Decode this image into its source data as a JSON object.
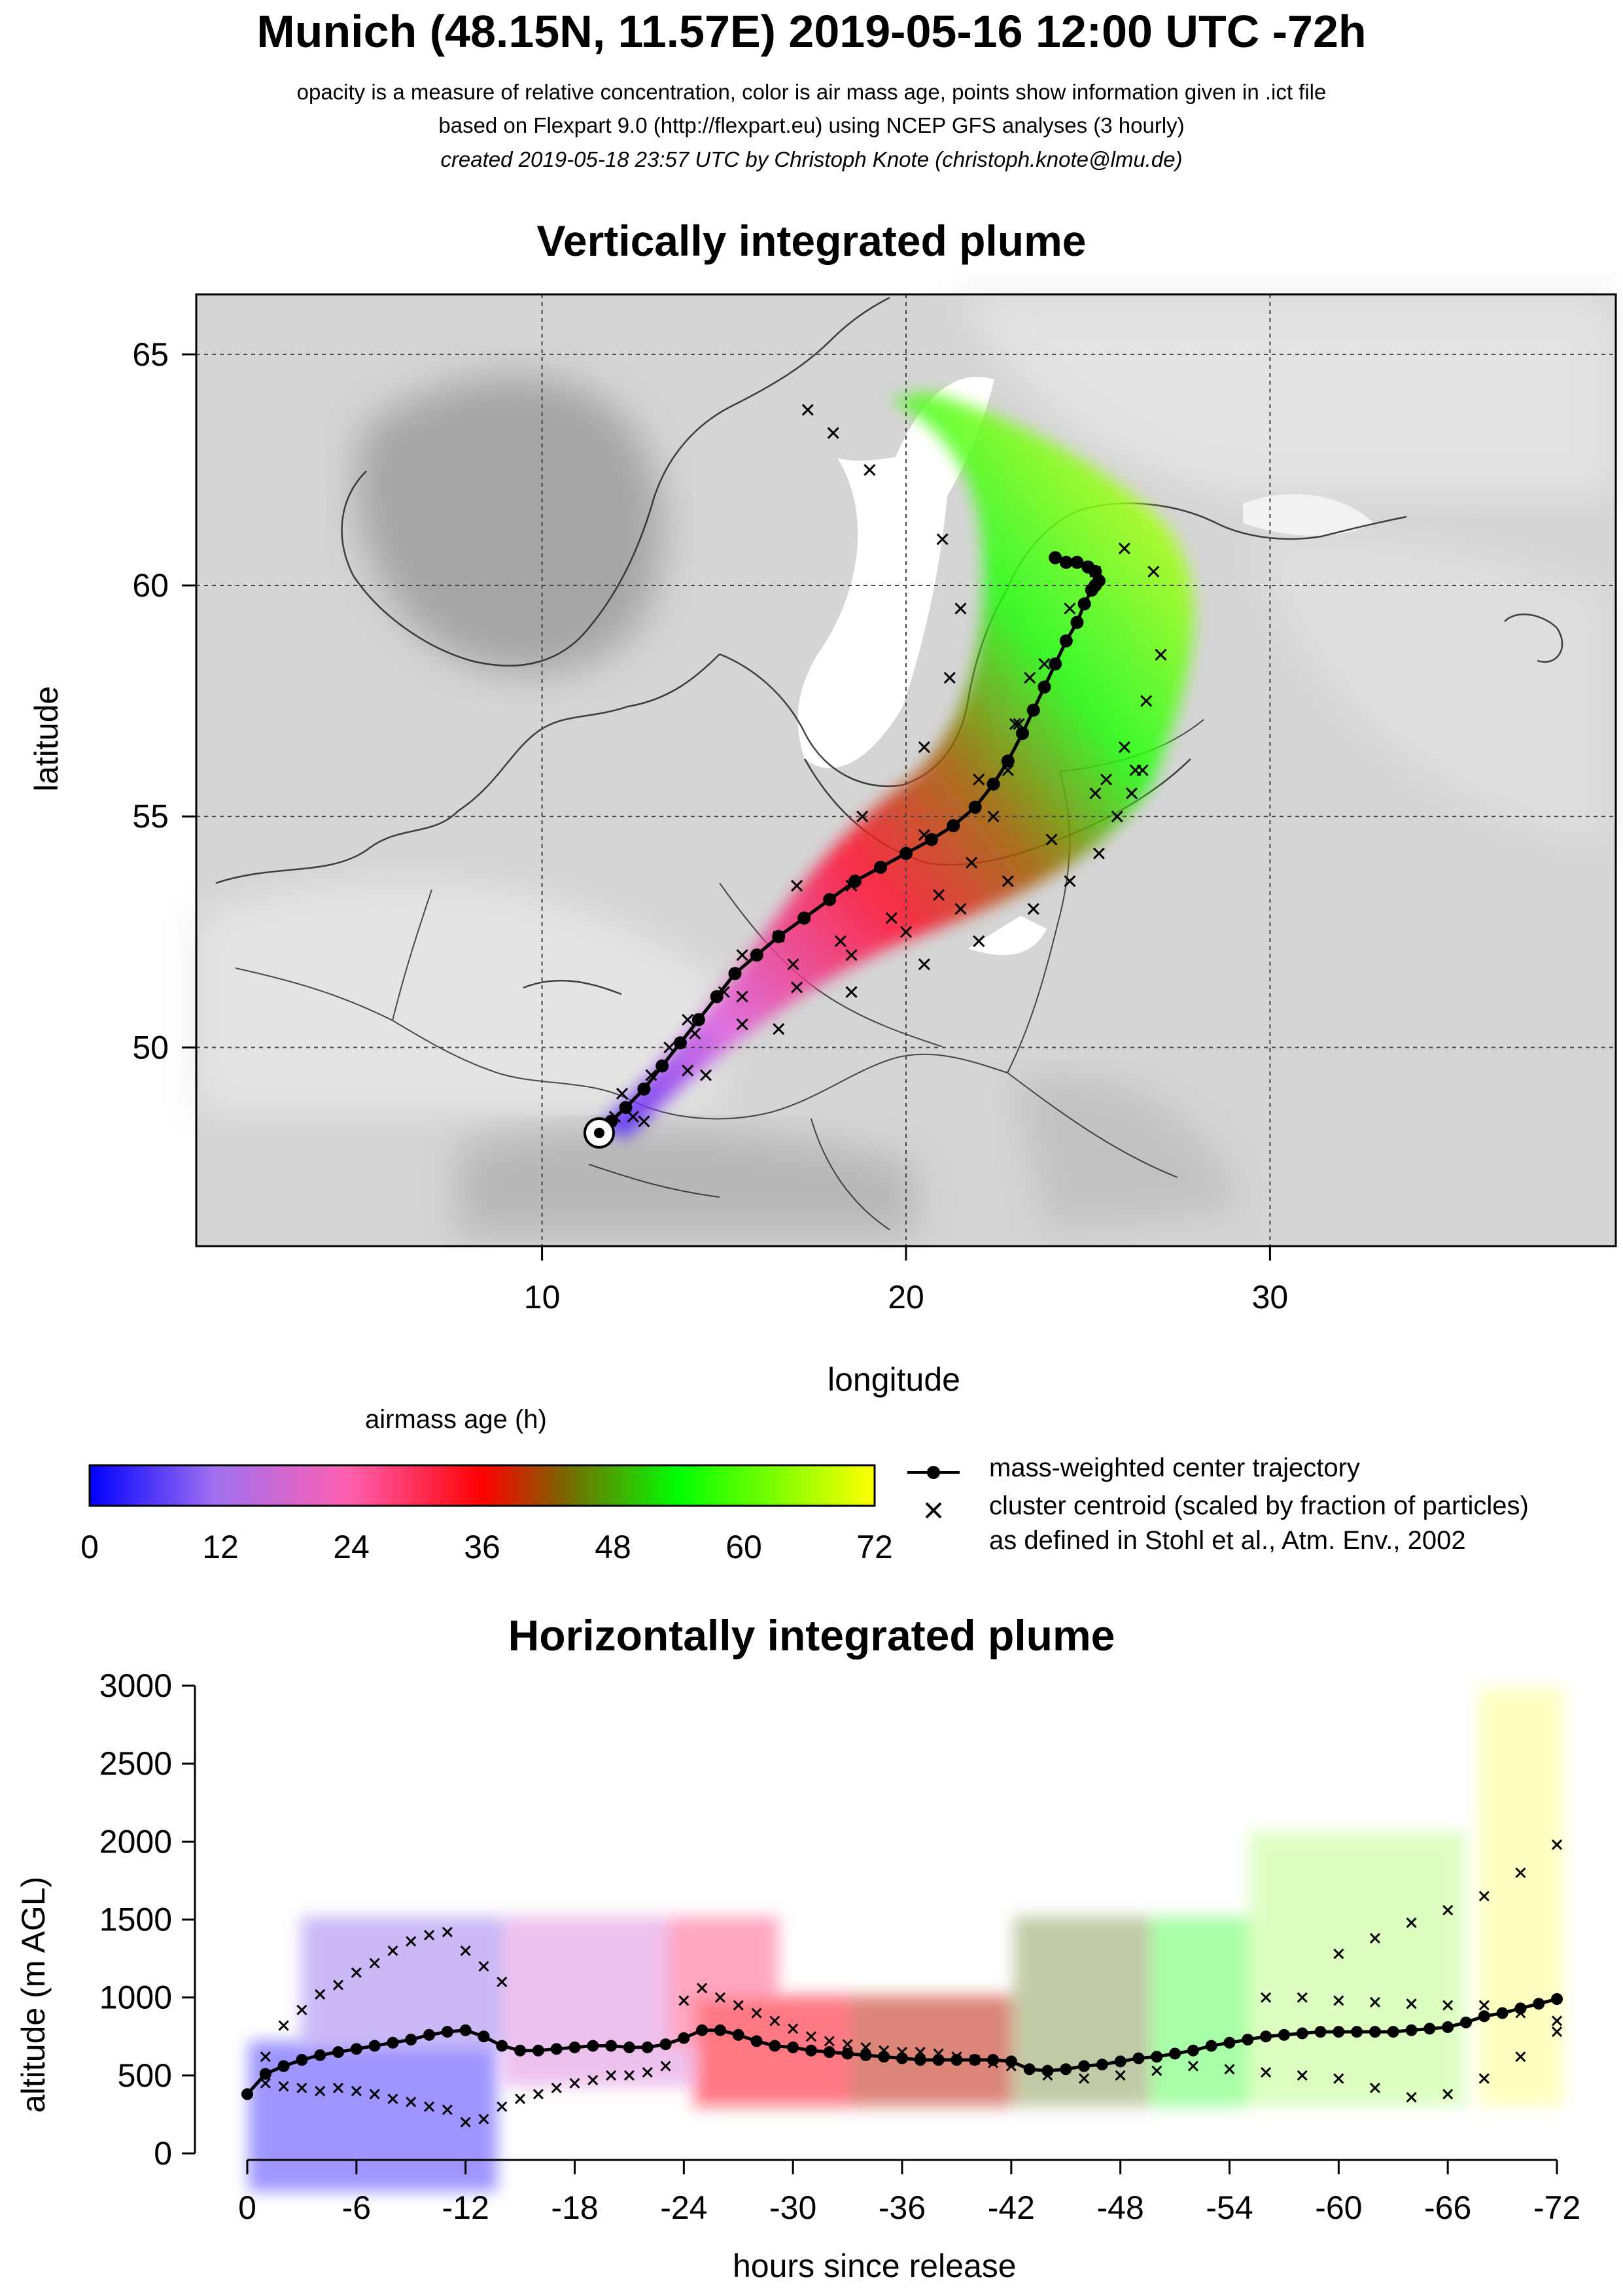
{
  "header": {
    "title": "Munich (48.15N, 11.57E) 2019-05-16 12:00 UTC -72h",
    "line1": "opacity is a measure of relative concentration, color is air mass age, points show information given in .ict file",
    "line2": "based on Flexpart 9.0 (http://flexpart.eu) using NCEP GFS analyses (3 hourly)",
    "line3": "created 2019-05-18 23:57 UTC by Christoph Knote (christoph.knote@lmu.de)"
  },
  "colors": {
    "background_map": "#d3d3d3",
    "water": "#ffffff",
    "age_ramp": [
      "#0000ff",
      "#d060e0",
      "#ff3080",
      "#ff0000",
      "#806000",
      "#00ff00",
      "#ffff00"
    ]
  },
  "chart_data": [
    {
      "type": "scatter",
      "title": "Vertically integrated plume",
      "xlabel": "longitude",
      "ylabel": "latitude",
      "xlim": [
        0.5,
        39.5
      ],
      "ylim": [
        45.7,
        66.3
      ],
      "xticks": [
        "10",
        "20",
        "30"
      ],
      "xtick_values": [
        10,
        20,
        30
      ],
      "yticks": [
        "50",
        "55",
        "60",
        "65"
      ],
      "ytick_values": [
        50,
        55,
        60,
        65
      ],
      "grid": true,
      "release_point": {
        "lon": 11.57,
        "lat": 48.15
      },
      "series": [
        {
          "name": "mass-weighted center trajectory",
          "lon": [
            11.6,
            11.9,
            12.3,
            12.8,
            13.3,
            13.8,
            14.3,
            14.8,
            15.3,
            15.9,
            16.5,
            17.2,
            17.9,
            18.6,
            19.3,
            20.0,
            20.7,
            21.3,
            21.9,
            22.4,
            22.8,
            23.2,
            23.5,
            23.8,
            24.1,
            24.4,
            24.7,
            24.9,
            25.1,
            25.2,
            25.3,
            25.2,
            25.0,
            24.7,
            24.4,
            24.1
          ],
          "lat": [
            48.15,
            48.4,
            48.7,
            49.1,
            49.6,
            50.1,
            50.6,
            51.1,
            51.6,
            52.0,
            52.4,
            52.8,
            53.2,
            53.6,
            53.9,
            54.2,
            54.5,
            54.8,
            55.2,
            55.7,
            56.2,
            56.8,
            57.3,
            57.8,
            58.3,
            58.8,
            59.2,
            59.6,
            59.9,
            60.0,
            60.1,
            60.3,
            60.4,
            60.5,
            60.5,
            60.6
          ]
        },
        {
          "name": "cluster centroid (scaled by fraction of particles)",
          "lon": [
            12.0,
            13.0,
            14.2,
            15.5,
            16.9,
            18.2,
            19.6,
            20.9,
            21.8,
            22.4,
            22.8,
            23.1,
            23.4,
            12.5,
            14.0,
            15.5,
            17.0,
            18.5,
            20.0,
            21.5,
            22.8,
            24.0,
            25.2,
            26.0,
            26.6,
            27.0,
            12.8,
            14.5,
            16.5,
            18.5,
            20.5,
            22.0,
            23.5,
            24.5,
            25.3,
            25.8,
            26.2,
            26.5,
            26.3,
            25.5,
            12.2,
            13.5,
            15.0,
            16.5,
            18.5,
            20.5,
            22.0,
            23.0,
            23.8,
            24.5,
            25.2,
            26.0,
            26.8,
            14.0,
            15.5,
            17.0,
            18.8,
            20.5,
            21.2,
            21.5,
            21.0,
            19.0,
            18.0,
            17.3
          ],
          "lat": [
            48.5,
            49.4,
            50.3,
            51.1,
            51.8,
            52.3,
            52.8,
            53.3,
            54.0,
            55.0,
            56.0,
            57.0,
            58.0,
            48.5,
            49.5,
            50.5,
            51.3,
            52.0,
            52.5,
            53.0,
            53.6,
            54.5,
            55.5,
            56.5,
            57.5,
            58.5,
            48.4,
            49.4,
            50.4,
            51.2,
            51.8,
            52.3,
            53.0,
            53.6,
            54.2,
            55.0,
            55.5,
            56.0,
            56.0,
            55.8,
            49.0,
            50.0,
            51.2,
            52.4,
            53.5,
            54.6,
            55.8,
            57.0,
            58.3,
            59.5,
            60.3,
            60.8,
            60.3,
            50.6,
            52.0,
            53.5,
            55.0,
            56.5,
            58.0,
            59.5,
            61.0,
            62.5,
            63.3,
            63.8
          ]
        }
      ]
    },
    {
      "type": "scatter",
      "title": "Horizontally integrated plume",
      "xlabel": "hours since release",
      "ylabel": "altitude (m AGL)",
      "xlim": [
        0,
        -72
      ],
      "ylim": [
        0,
        3000
      ],
      "xticks": [
        "0",
        "-6",
        "-12",
        "-18",
        "-24",
        "-30",
        "-36",
        "-42",
        "-48",
        "-54",
        "-60",
        "-66",
        "-72"
      ],
      "xtick_values": [
        0,
        -6,
        -12,
        -18,
        -24,
        -30,
        -36,
        -42,
        -48,
        -54,
        -60,
        -66,
        -72
      ],
      "yticks": [
        "0",
        "500",
        "1000",
        "1500",
        "2000",
        "2500",
        "3000"
      ],
      "ytick_values": [
        0,
        500,
        1000,
        1500,
        2000,
        2500,
        3000
      ],
      "grid": false,
      "series": [
        {
          "name": "mass-weighted center trajectory",
          "x": [
            0,
            -1,
            -2,
            -3,
            -4,
            -5,
            -6,
            -7,
            -8,
            -9,
            -10,
            -11,
            -12,
            -13,
            -14,
            -15,
            -16,
            -17,
            -18,
            -19,
            -20,
            -21,
            -22,
            -23,
            -24,
            -25,
            -26,
            -27,
            -28,
            -29,
            -30,
            -31,
            -32,
            -33,
            -34,
            -35,
            -36,
            -37,
            -38,
            -39,
            -40,
            -41,
            -42,
            -43,
            -44,
            -45,
            -46,
            -47,
            -48,
            -49,
            -50,
            -51,
            -52,
            -53,
            -54,
            -55,
            -56,
            -57,
            -58,
            -59,
            -60,
            -61,
            -62,
            -63,
            -64,
            -65,
            -66,
            -67,
            -68,
            -69,
            -70,
            -71,
            -72
          ],
          "y": [
            380,
            510,
            560,
            600,
            630,
            650,
            670,
            690,
            710,
            730,
            760,
            780,
            790,
            750,
            690,
            660,
            660,
            670,
            680,
            690,
            690,
            680,
            680,
            700,
            740,
            790,
            790,
            760,
            720,
            690,
            680,
            660,
            650,
            640,
            630,
            620,
            610,
            600,
            600,
            600,
            600,
            600,
            590,
            540,
            530,
            540,
            560,
            570,
            590,
            610,
            620,
            640,
            660,
            690,
            710,
            730,
            750,
            760,
            770,
            780,
            780,
            780,
            780,
            780,
            790,
            800,
            810,
            840,
            880,
            900,
            930,
            960,
            990
          ]
        },
        {
          "name": "cluster centroid (scaled by fraction of particles)",
          "x": [
            -1,
            -2,
            -3,
            -4,
            -5,
            -6,
            -7,
            -8,
            -9,
            -10,
            -11,
            -12,
            -13,
            -14,
            -1,
            -2,
            -3,
            -4,
            -5,
            -6,
            -7,
            -8,
            -9,
            -10,
            -11,
            -12,
            -13,
            -14,
            -15,
            -16,
            -17,
            -18,
            -19,
            -20,
            -21,
            -22,
            -23,
            -24,
            -25,
            -26,
            -27,
            -28,
            -29,
            -30,
            -31,
            -32,
            -33,
            -34,
            -35,
            -36,
            -37,
            -38,
            -39,
            -40,
            -41,
            -42,
            -44,
            -46,
            -48,
            -50,
            -52,
            -54,
            -56,
            -58,
            -60,
            -62,
            -64,
            -66,
            -68,
            -70,
            -72,
            -60,
            -62,
            -64,
            -66,
            -68,
            -70,
            -72,
            -56,
            -58,
            -60,
            -62,
            -64,
            -66,
            -68,
            -70,
            -72
          ],
          "y": [
            620,
            820,
            920,
            1020,
            1080,
            1160,
            1220,
            1300,
            1360,
            1400,
            1420,
            1300,
            1200,
            1100,
            450,
            430,
            420,
            400,
            420,
            400,
            380,
            350,
            330,
            300,
            280,
            200,
            220,
            300,
            350,
            380,
            420,
            450,
            470,
            500,
            500,
            520,
            560,
            980,
            1060,
            1000,
            950,
            900,
            850,
            800,
            750,
            720,
            700,
            680,
            660,
            650,
            650,
            640,
            620,
            600,
            580,
            560,
            500,
            480,
            500,
            530,
            560,
            540,
            520,
            500,
            480,
            420,
            360,
            380,
            480,
            620,
            780,
            1280,
            1380,
            1480,
            1560,
            1650,
            1800,
            1980,
            1000,
            1000,
            980,
            970,
            960,
            950,
            950,
            900,
            850
          ]
        }
      ]
    }
  ],
  "legend": {
    "colorbar_title": "airmass age (h)",
    "colorbar_ticks": [
      "0",
      "12",
      "24",
      "36",
      "48",
      "60",
      "72"
    ],
    "line_item": "mass-weighted center trajectory",
    "cross_item": "cluster centroid (scaled by fraction of particles)",
    "cross_item_line2": "as defined in Stohl et al., Atm. Env., 2002"
  }
}
